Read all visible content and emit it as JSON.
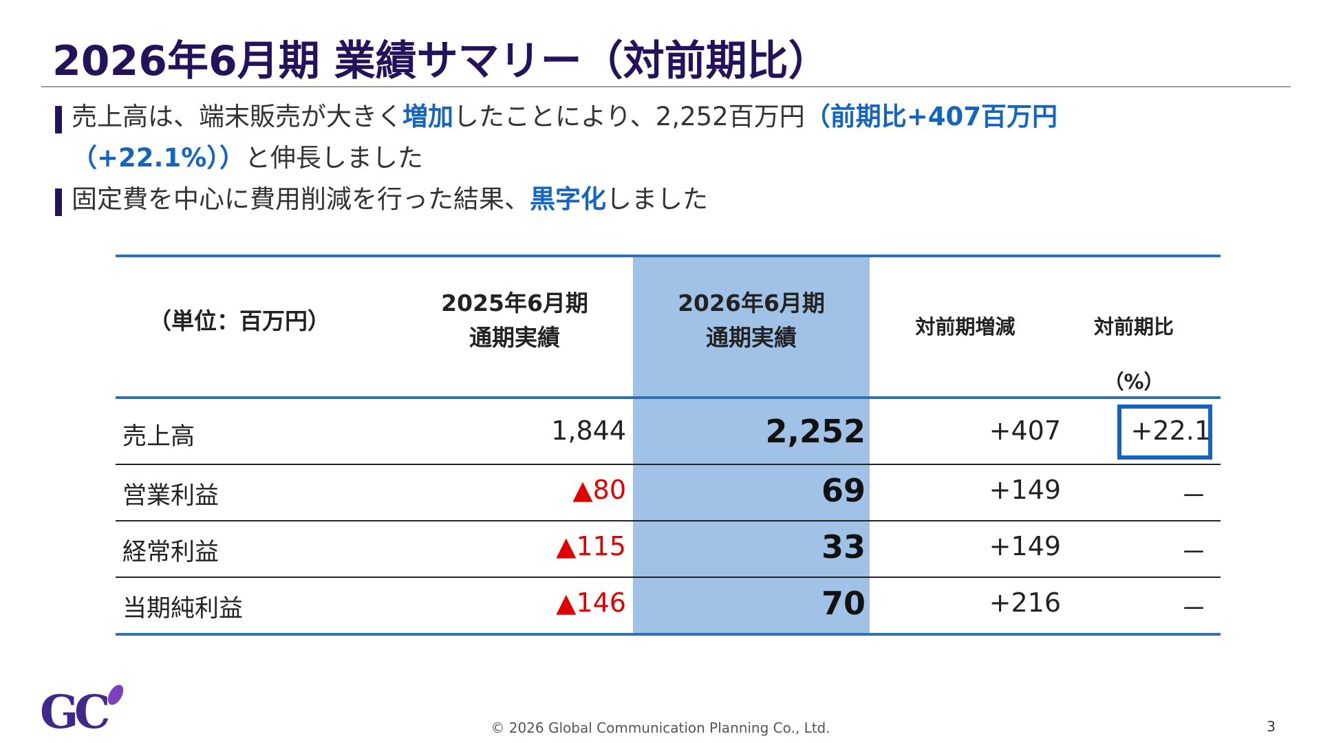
{
  "title": "2026年6月期 業績サマリー（対前期比）",
  "bullets": [
    {
      "line1_a": "売上高は、端末販売が大きく",
      "line1_hl": "増加",
      "line1_b": "したことにより、2,252百万円",
      "line1_hl2": "（前期比+407百万円",
      "line2_hl": "（+22.1%））",
      "line2_b": "と伸長しました"
    },
    {
      "a": "固定費を中心に費用削減を行った結果、",
      "hl": "黒字化",
      "b": "しました"
    }
  ],
  "table": {
    "unit_label": "（単位：百万円）",
    "col_prev_line1": "2025年6月期",
    "col_prev_line2": "通期実績",
    "col_curr_line1": "2026年6月期",
    "col_curr_line2": "通期実績",
    "col_diff": "対前期増減",
    "col_ratio_line1": "対前期比",
    "col_ratio_line2": "（%）",
    "rows": [
      {
        "label": "売上高",
        "prev": "1,844",
        "curr": "2,252",
        "diff": "+407",
        "ratio": "+22.1"
      },
      {
        "label": "営業利益",
        "prev": "▲80",
        "curr": "69",
        "diff": "+149",
        "ratio": "－"
      },
      {
        "label": "経常利益",
        "prev": "▲115",
        "curr": "33",
        "diff": "+149",
        "ratio": "－"
      },
      {
        "label": "当期純利益",
        "prev": "▲146",
        "curr": "70",
        "diff": "+216",
        "ratio": "－"
      }
    ]
  },
  "footer": "© 2026 Global Communication Planning Co., Ltd.",
  "page_number": "3",
  "colors": {
    "title": "#24135c",
    "highlight": "#1565c0",
    "negative": "#e00000",
    "table_accent": "#2f6fb3",
    "column_highlight": "#9fc2e6"
  }
}
